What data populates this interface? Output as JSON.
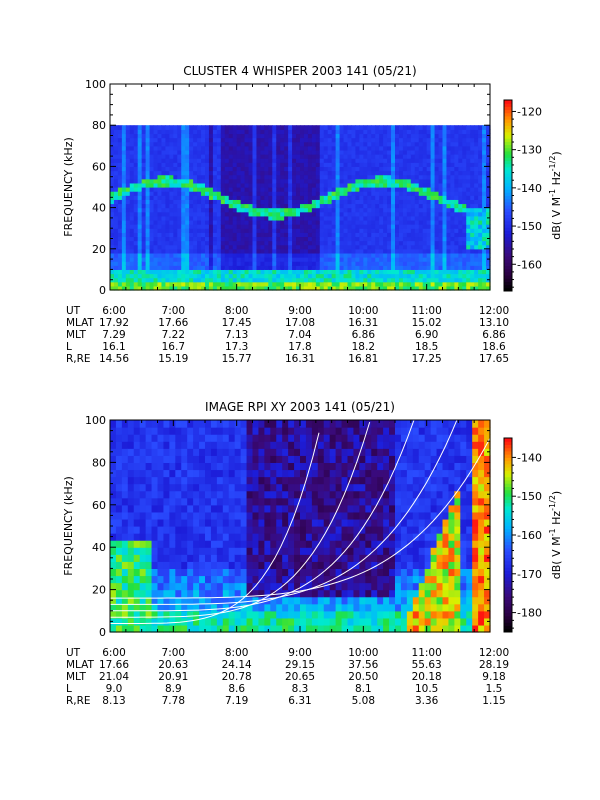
{
  "chart_data": [
    {
      "type": "heatmap",
      "title": "CLUSTER 4 WHISPER 2003 141 (05/21)",
      "ylabel": "FREQUENCY (kHz)",
      "ylim": [
        0,
        100
      ],
      "yticks": [
        "0",
        "20",
        "40",
        "60",
        "80",
        "100"
      ],
      "xticks": [
        "6:00",
        "7:00",
        "8:00",
        "9:00",
        "10:00",
        "11:00",
        "12:00"
      ],
      "colorbar": {
        "label_parts": [
          "dB( V M",
          "-1",
          " Hz",
          "-1/2",
          ")"
        ],
        "ticks": [
          "-120",
          "-130",
          "-140",
          "-150",
          "-160"
        ],
        "range": [
          -167,
          -117
        ]
      },
      "data_top_freq_khz": 80,
      "ephemeris": {
        "rows": [
          {
            "label": "UT",
            "values": [
              "6:00",
              "7:00",
              "8:00",
              "9:00",
              "10:00",
              "11:00",
              "12:00"
            ]
          },
          {
            "label": "MLAT",
            "values": [
              "17.92",
              "17.66",
              "17.45",
              "17.08",
              "16.31",
              "15.02",
              "13.10"
            ]
          },
          {
            "label": "MLT",
            "values": [
              "7.29",
              "7.22",
              "7.13",
              "7.04",
              "6.86",
              "6.90",
              "6.86"
            ]
          },
          {
            "label": "L",
            "values": [
              "16.1",
              "16.7",
              "17.3",
              "17.8",
              "18.2",
              "18.5",
              "18.6"
            ]
          },
          {
            "label": "R,RE",
            "values": [
              "14.56",
              "15.19",
              "15.77",
              "16.31",
              "16.81",
              "17.25",
              "17.65"
            ]
          }
        ]
      }
    },
    {
      "type": "heatmap",
      "title": "IMAGE RPI XY 2003 141 (05/21)",
      "ylabel": "FREQUENCY (kHz)",
      "ylim": [
        0,
        100
      ],
      "yticks": [
        "0",
        "20",
        "40",
        "60",
        "80",
        "100"
      ],
      "xticks": [
        "6:00",
        "7:00",
        "8:00",
        "9:00",
        "10:00",
        "11:00",
        "12:00"
      ],
      "colorbar": {
        "label_parts": [
          "dB( V M",
          "-1",
          " Hz",
          "-1/2",
          ")"
        ],
        "ticks": [
          "-140",
          "-150",
          "-160",
          "-170",
          "-180"
        ],
        "range": [
          -185,
          -135
        ]
      },
      "ephemeris": {
        "rows": [
          {
            "label": "UT",
            "values": [
              "6:00",
              "7:00",
              "8:00",
              "9:00",
              "10:00",
              "11:00",
              "12:00"
            ]
          },
          {
            "label": "MLAT",
            "values": [
              "17.66",
              "20.63",
              "24.14",
              "29.15",
              "37.56",
              "55.63",
              "28.19"
            ]
          },
          {
            "label": "MLT",
            "values": [
              "21.04",
              "20.91",
              "20.78",
              "20.65",
              "20.50",
              "20.18",
              "9.18"
            ]
          },
          {
            "label": "L",
            "values": [
              "9.0",
              "8.9",
              "8.6",
              "8.3",
              "8.1",
              "10.5",
              "1.5"
            ]
          },
          {
            "label": "R,RE",
            "values": [
              "8.13",
              "7.78",
              "7.19",
              "6.31",
              "5.08",
              "3.36",
              "1.15"
            ]
          }
        ]
      }
    }
  ]
}
